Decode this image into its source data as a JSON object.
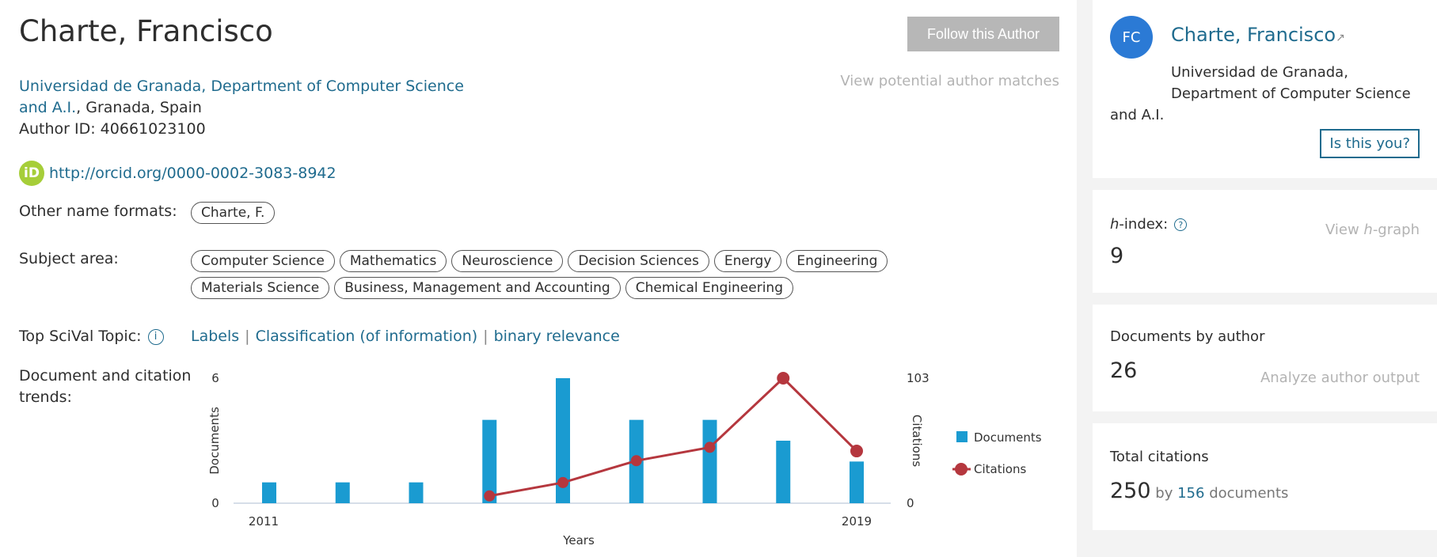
{
  "author": {
    "name": "Charte, Francisco",
    "affiliation_link_line1": "Universidad de Granada, Department of Computer Science",
    "affiliation_link_line2": "and A.I.",
    "affiliation_location": ", Granada, Spain",
    "author_id": "Author ID: 40661023100",
    "orcid_icon": "iD",
    "orcid_url": "http://orcid.org/0000-0002-3083-8942"
  },
  "actions": {
    "follow": "Follow this Author",
    "potential_matches": "View potential author matches"
  },
  "other_names": {
    "label": "Other name formats:",
    "items": [
      "Charte, F."
    ]
  },
  "subject_area": {
    "label": "Subject area:",
    "items": [
      "Computer Science",
      "Mathematics",
      "Neuroscience",
      "Decision Sciences",
      "Energy",
      "Engineering",
      "Materials Science",
      "Business, Management and Accounting",
      "Chemical Engineering"
    ]
  },
  "scival": {
    "label": "Top SciVal Topic:",
    "topics": [
      "Labels",
      "Classification (of information)",
      "binary relevance"
    ],
    "separator": "|"
  },
  "trends": {
    "label_line1": "Document and citation",
    "label_line2": "trends:"
  },
  "chart_data": {
    "type": "bar",
    "xlabel": "Years",
    "ylabel": "Documents",
    "y2label": "Citations",
    "x_tick_labels": [
      "2011",
      "2019"
    ],
    "categories": [
      "2011",
      "2012",
      "2013",
      "2014",
      "2015",
      "2016",
      "2017",
      "2018",
      "2019"
    ],
    "ylim": [
      0,
      6
    ],
    "y2lim": [
      0,
      103
    ],
    "y_tick_labels": [
      "0",
      "6"
    ],
    "y2_tick_labels": [
      "0",
      "103"
    ],
    "series": [
      {
        "name": "Documents",
        "type": "bar",
        "color": "#1a9bd1",
        "values": [
          1,
          1,
          1,
          4,
          6,
          4,
          4,
          3,
          2
        ]
      },
      {
        "name": "Citations",
        "type": "line",
        "color": "#b5373e",
        "values": [
          null,
          null,
          null,
          6,
          17,
          35,
          46,
          103,
          43
        ]
      }
    ],
    "legend": "right"
  },
  "sidebar": {
    "avatar_initials": "FC",
    "name": "Charte, Francisco",
    "external_icon": "↗",
    "affiliation_line1": "Universidad de Granada,",
    "affiliation_line2": "Department of Computer Science",
    "affiliation_line3": "and A.I.",
    "is_this_you": "Is this you?",
    "hindex_label_italic": "h",
    "hindex_label_rest": "-index:",
    "hindex_help_icon": "?",
    "hindex_value": "9",
    "view_hgraph_pre": "View ",
    "view_hgraph_italic": "h",
    "view_hgraph_post": "-graph",
    "docs_label": "Documents by author",
    "docs_value": "26",
    "analyze": "Analyze author output",
    "citations_label": "Total citations",
    "citations_value": "250",
    "citations_by": "by",
    "citations_docs": "156",
    "citations_docs_suffix": "documents"
  },
  "colors": {
    "link": "#1f6b8e",
    "bar": "#1a9bd1",
    "line": "#b5373e",
    "orcid": "#a6ce39",
    "avatar": "#2b7ad5"
  }
}
